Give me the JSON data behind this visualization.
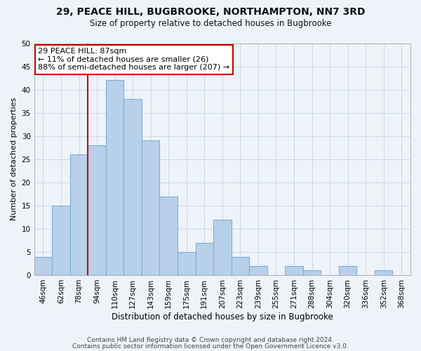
{
  "title_line1": "29, PEACE HILL, BUGBROOKE, NORTHAMPTON, NN7 3RD",
  "title_line2": "Size of property relative to detached houses in Bugbrooke",
  "xlabel": "Distribution of detached houses by size in Bugbrooke",
  "ylabel": "Number of detached properties",
  "bin_labels": [
    "46sqm",
    "62sqm",
    "78sqm",
    "94sqm",
    "110sqm",
    "127sqm",
    "143sqm",
    "159sqm",
    "175sqm",
    "191sqm",
    "207sqm",
    "223sqm",
    "239sqm",
    "255sqm",
    "271sqm",
    "288sqm",
    "304sqm",
    "320sqm",
    "336sqm",
    "352sqm",
    "368sqm"
  ],
  "bar_heights": [
    4,
    15,
    26,
    28,
    42,
    38,
    29,
    17,
    5,
    7,
    12,
    4,
    2,
    0,
    2,
    1,
    0,
    2,
    0,
    1,
    0
  ],
  "bar_color": "#b8d0ea",
  "bar_edge_color": "#7aafd4",
  "vline_color": "#cc0000",
  "ylim": [
    0,
    50
  ],
  "yticks": [
    0,
    5,
    10,
    15,
    20,
    25,
    30,
    35,
    40,
    45,
    50
  ],
  "annotation_text_line1": "29 PEACE HILL: 87sqm",
  "annotation_text_line2": "← 11% of detached houses are smaller (26)",
  "annotation_text_line3": "88% of semi-detached houses are larger (207) →",
  "footer_line1": "Contains HM Land Registry data © Crown copyright and database right 2024.",
  "footer_line2": "Contains public sector information licensed under the Open Government Licence v3.0.",
  "grid_color": "#c8d8e8",
  "background_color": "#eef3f9",
  "title_fontsize": 10,
  "subtitle_fontsize": 8.5,
  "ylabel_fontsize": 8,
  "xlabel_fontsize": 8.5,
  "tick_fontsize": 7.5,
  "footer_fontsize": 6.5
}
